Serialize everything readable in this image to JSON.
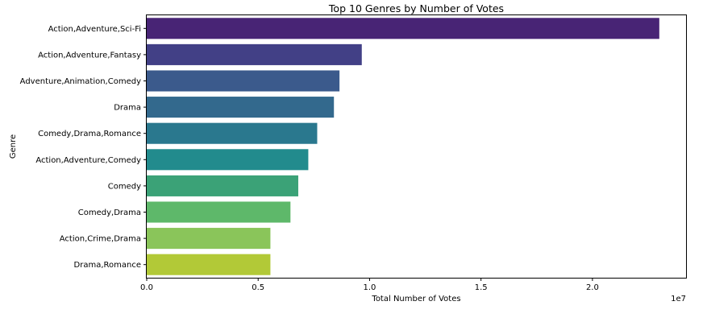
{
  "chart_data": {
    "type": "bar",
    "orientation": "horizontal",
    "title": "Top 10 Genres by Number of Votes",
    "xlabel": "Total Number of Votes",
    "ylabel": "Genre",
    "x_scale_label": "1e7",
    "xlim": [
      0,
      24200000
    ],
    "xticks": [
      {
        "value": 0,
        "label": "0.0"
      },
      {
        "value": 5000000,
        "label": "0.5"
      },
      {
        "value": 10000000,
        "label": "1.0"
      },
      {
        "value": 15000000,
        "label": "1.5"
      },
      {
        "value": 20000000,
        "label": "2.0"
      }
    ],
    "grid": false,
    "legend": false,
    "palette": "viridis",
    "categories": [
      "Action,Adventure,Sci-Fi",
      "Action,Adventure,Fantasy",
      "Adventure,Animation,Comedy",
      "Drama",
      "Comedy,Drama,Romance",
      "Action,Adventure,Comedy",
      "Comedy",
      "Comedy,Drama",
      "Action,Crime,Drama",
      "Drama,Romance"
    ],
    "values": [
      23000000,
      9650000,
      8650000,
      8400000,
      7650000,
      7250000,
      6800000,
      6450000,
      5550000,
      5550000
    ],
    "colors": [
      "#482475",
      "#424086",
      "#3b5a8c",
      "#33698d",
      "#2a788e",
      "#228b8d",
      "#3ba277",
      "#5eb86a",
      "#8ac55a",
      "#b2c937"
    ]
  }
}
